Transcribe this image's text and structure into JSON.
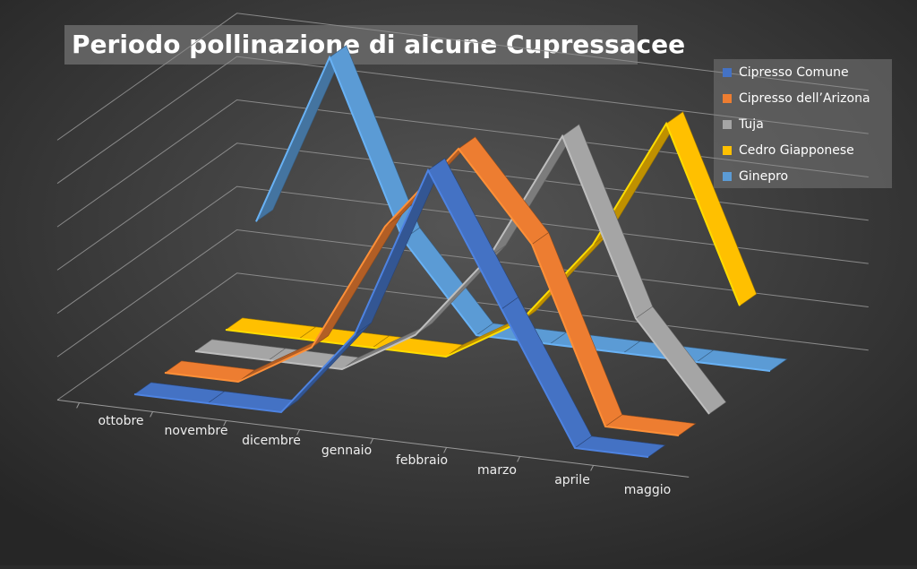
{
  "chart_data": {
    "type": "line3d",
    "title": "Periodo pollinazione di alcune Cupressacee",
    "categories": [
      "ottobre",
      "novembre",
      "dicembre",
      "gennaio",
      "febbraio",
      "marzo",
      "aprile",
      "maggio"
    ],
    "ylim": [
      0,
      6
    ],
    "yticks": [
      0,
      1,
      2,
      3,
      4,
      5,
      6
    ],
    "grid": true,
    "legend": "top-right",
    "series": [
      {
        "name": "Cipresso Comune",
        "color": "#4472c4",
        "values": [
          0,
          0,
          0,
          2,
          6,
          3,
          0,
          0
        ]
      },
      {
        "name": "Cipresso dell’Arizona",
        "color": "#ed7d31",
        "values": [
          0,
          0,
          1,
          4,
          6,
          4,
          0,
          0
        ]
      },
      {
        "name": "Tuja",
        "color": "#a5a5a5",
        "values": [
          0,
          0,
          0,
          1,
          3,
          6,
          2,
          0
        ]
      },
      {
        "name": "Cedro Giapponese",
        "color": "#ffc000",
        "values": [
          0,
          0,
          0,
          0,
          1,
          3,
          6,
          2
        ]
      },
      {
        "name": "Ginepro",
        "color": "#5b9bd5",
        "values": [
          2,
          6,
          2,
          0,
          0,
          0,
          0,
          0
        ]
      }
    ]
  }
}
